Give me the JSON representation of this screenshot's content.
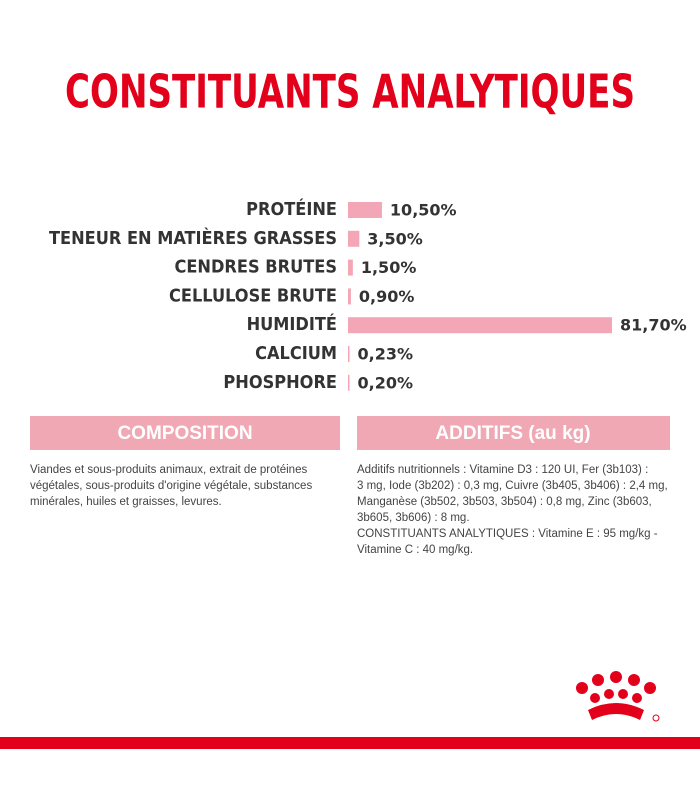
{
  "chart_data": {
    "type": "bar",
    "orientation": "horizontal",
    "title": "CONSTITUANTS ANALYTIQUES",
    "categories": [
      "PROTÉINE",
      "TENEUR EN MATIÈRES GRASSES",
      "CENDRES BRUTES",
      "CELLULOSE BRUTE",
      "HUMIDITÉ",
      "CALCIUM",
      "PHOSPHORE"
    ],
    "values": [
      10.5,
      3.5,
      1.5,
      0.9,
      81.7,
      0.23,
      0.2
    ],
    "value_labels": [
      "10,50%",
      "3,50%",
      "1,50%",
      "0,90%",
      "81,70%",
      "0,23%",
      "0,20%"
    ],
    "color": "#f3a6b5"
  },
  "composition": {
    "title": "COMPOSITION",
    "lines": [
      "Viandes et sous-produits animaux, extrait de protéines",
      "végétales, sous-produits d'origine végétale, substances",
      "minérales, huiles et graisses, levures."
    ]
  },
  "additifs": {
    "title": "ADDITIFS (au kg)",
    "lines": [
      "Additifs nutritionnels : Vitamine D3 : 120 UI, Fer (3b103) :",
      "3 mg, Iode (3b202) : 0,3 mg, Cuivre (3b405, 3b406) : 2,4 mg,",
      "Manganèse (3b502, 3b503, 3b504) : 0,8 mg, Zinc (3b603,",
      "3b605, 3b606) : 8 mg.",
      "CONSTITUANTS ANALYTIQUES : Vitamine E : 95 mg/kg -",
      "Vitamine C : 40 mg/kg."
    ]
  }
}
